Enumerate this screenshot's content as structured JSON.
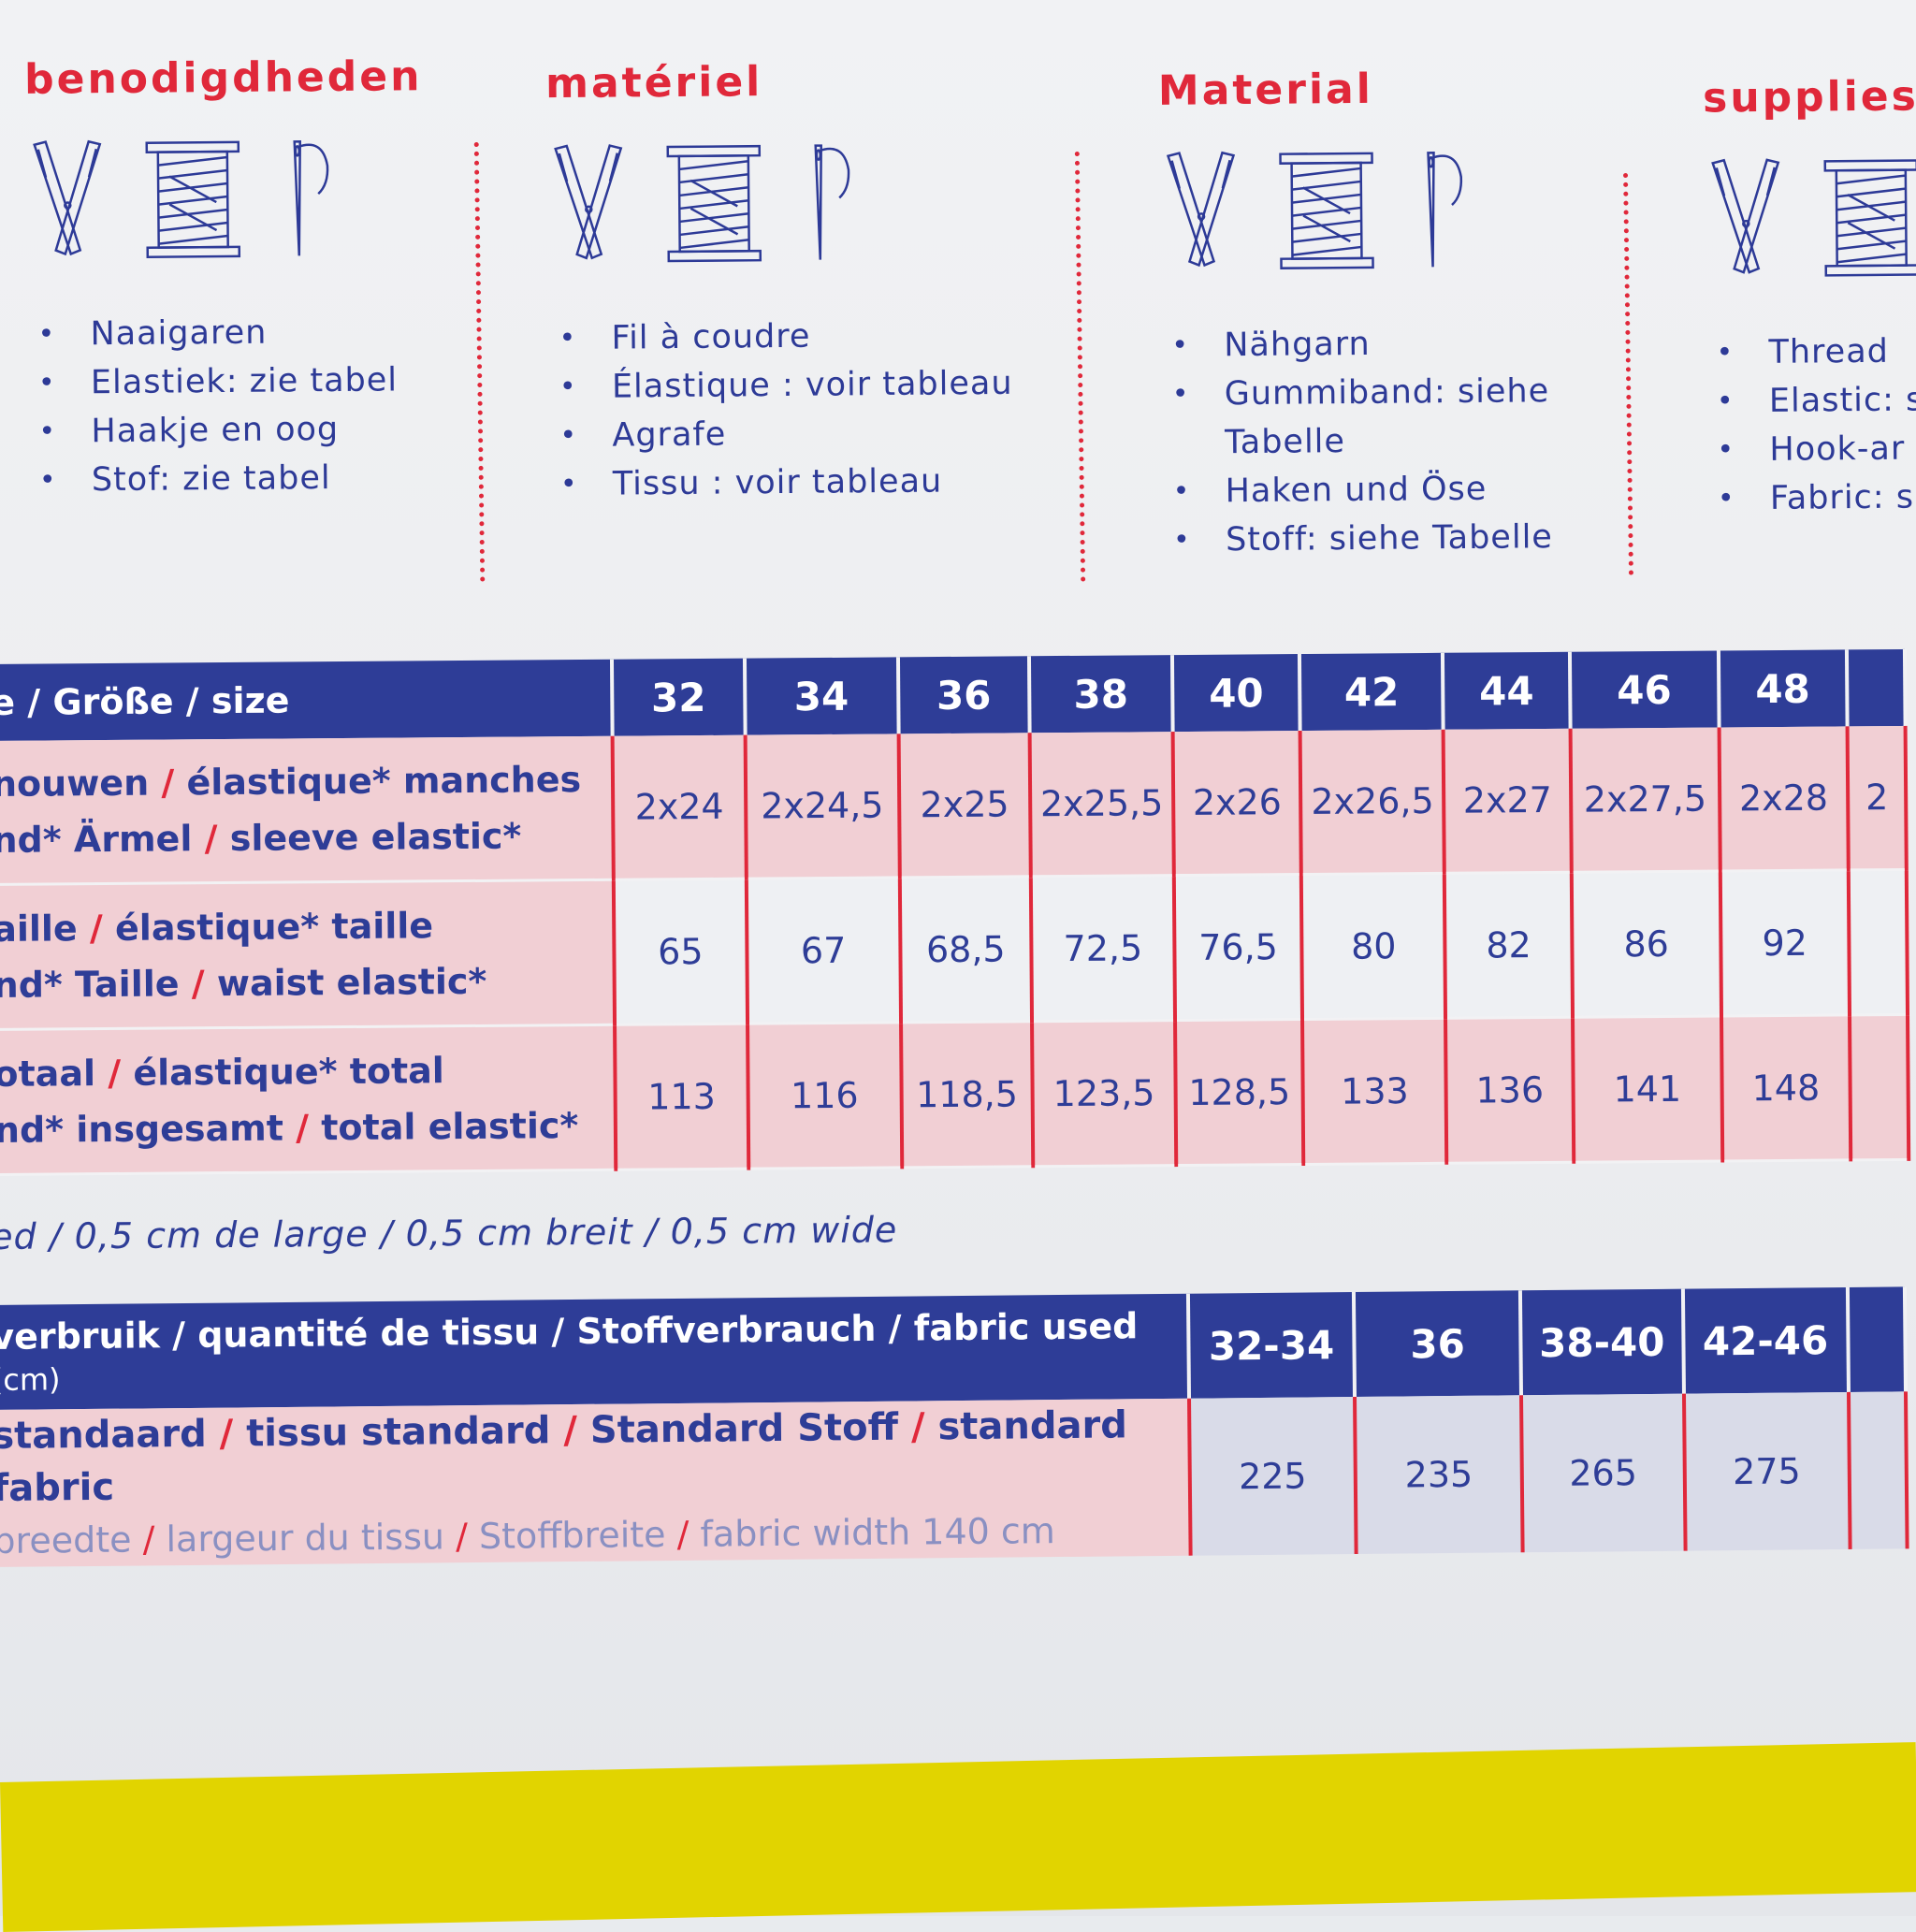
{
  "columns": [
    {
      "title": "benodigdheden",
      "items": [
        "Naaigaren",
        "Elastiek: zie tabel",
        "Haakje en oog",
        "Stof: zie tabel"
      ]
    },
    {
      "title": "matériel",
      "items": [
        "Fil à coudre",
        "Élastique : voir tableau",
        "Agrafe",
        "Tissu : voir tableau"
      ]
    },
    {
      "title": "Material",
      "items": [
        "Nähgarn",
        "Gummiband: siehe",
        "Tabelle",
        "Haken und Öse",
        "Stoff: siehe Tabelle"
      ]
    },
    {
      "title": "supplies",
      "items": [
        "Thread",
        "Elastic: s",
        "Hook-ar",
        "Fabric: s"
      ]
    }
  ],
  "icons": [
    "scissors-icon",
    "thread-spool-icon",
    "needle-icon"
  ],
  "size_table": {
    "header_label": "e / Größe / size",
    "sizes": [
      "32",
      "34",
      "36",
      "38",
      "40",
      "42",
      "44",
      "46",
      "48",
      ""
    ],
    "rows": [
      {
        "label_1a": "nouwen",
        "label_1b": "élastique* manches",
        "label_2a": "nd* Ärmel",
        "label_2b": "sleeve elastic*",
        "values": [
          "2x24",
          "2x24,5",
          "2x25",
          "2x25,5",
          "2x26",
          "2x26,5",
          "2x27",
          "2x27,5",
          "2x28",
          "2"
        ]
      },
      {
        "label_1a": "aille",
        "label_1b": "élastique* taille",
        "label_2a": "nd* Taille",
        "label_2b": "waist elastic*",
        "values": [
          "65",
          "67",
          "68,5",
          "72,5",
          "76,5",
          "80",
          "82",
          "86",
          "92",
          ""
        ]
      },
      {
        "label_1a": "otaal",
        "label_1b": "élastique* total",
        "label_2a": "nd* insgesamt",
        "label_2b": "total elastic*",
        "values": [
          "113",
          "116",
          "118,5",
          "123,5",
          "128,5",
          "133",
          "136",
          "141",
          "148",
          ""
        ]
      }
    ]
  },
  "note": "ed / 0,5 cm de large / 0,5 cm breit / 0,5 cm wide",
  "fabric_table": {
    "header_label": "verbruik / quantité de tissu / Stoffverbrauch / fabric used",
    "header_unit": "(cm)",
    "sizes": [
      "32-34",
      "36",
      "38-40",
      "42-46",
      ""
    ],
    "row_line1_a": "standaard",
    "row_line1_b": "tissu standard",
    "row_line1_c": "Standard Stoff",
    "row_line1_d": "standard fabric",
    "row_line2_a": "breedte",
    "row_line2_b": "largeur du tissu",
    "row_line2_c": "Stoffbreite",
    "row_line2_d": "fabric width 140 cm",
    "values": [
      "225",
      "235",
      "265",
      "275",
      ""
    ]
  },
  "colors": {
    "red": "#e0283a",
    "navy": "#2e3d97",
    "pink": "#f1cfd4",
    "yellow": "#e1d400"
  }
}
